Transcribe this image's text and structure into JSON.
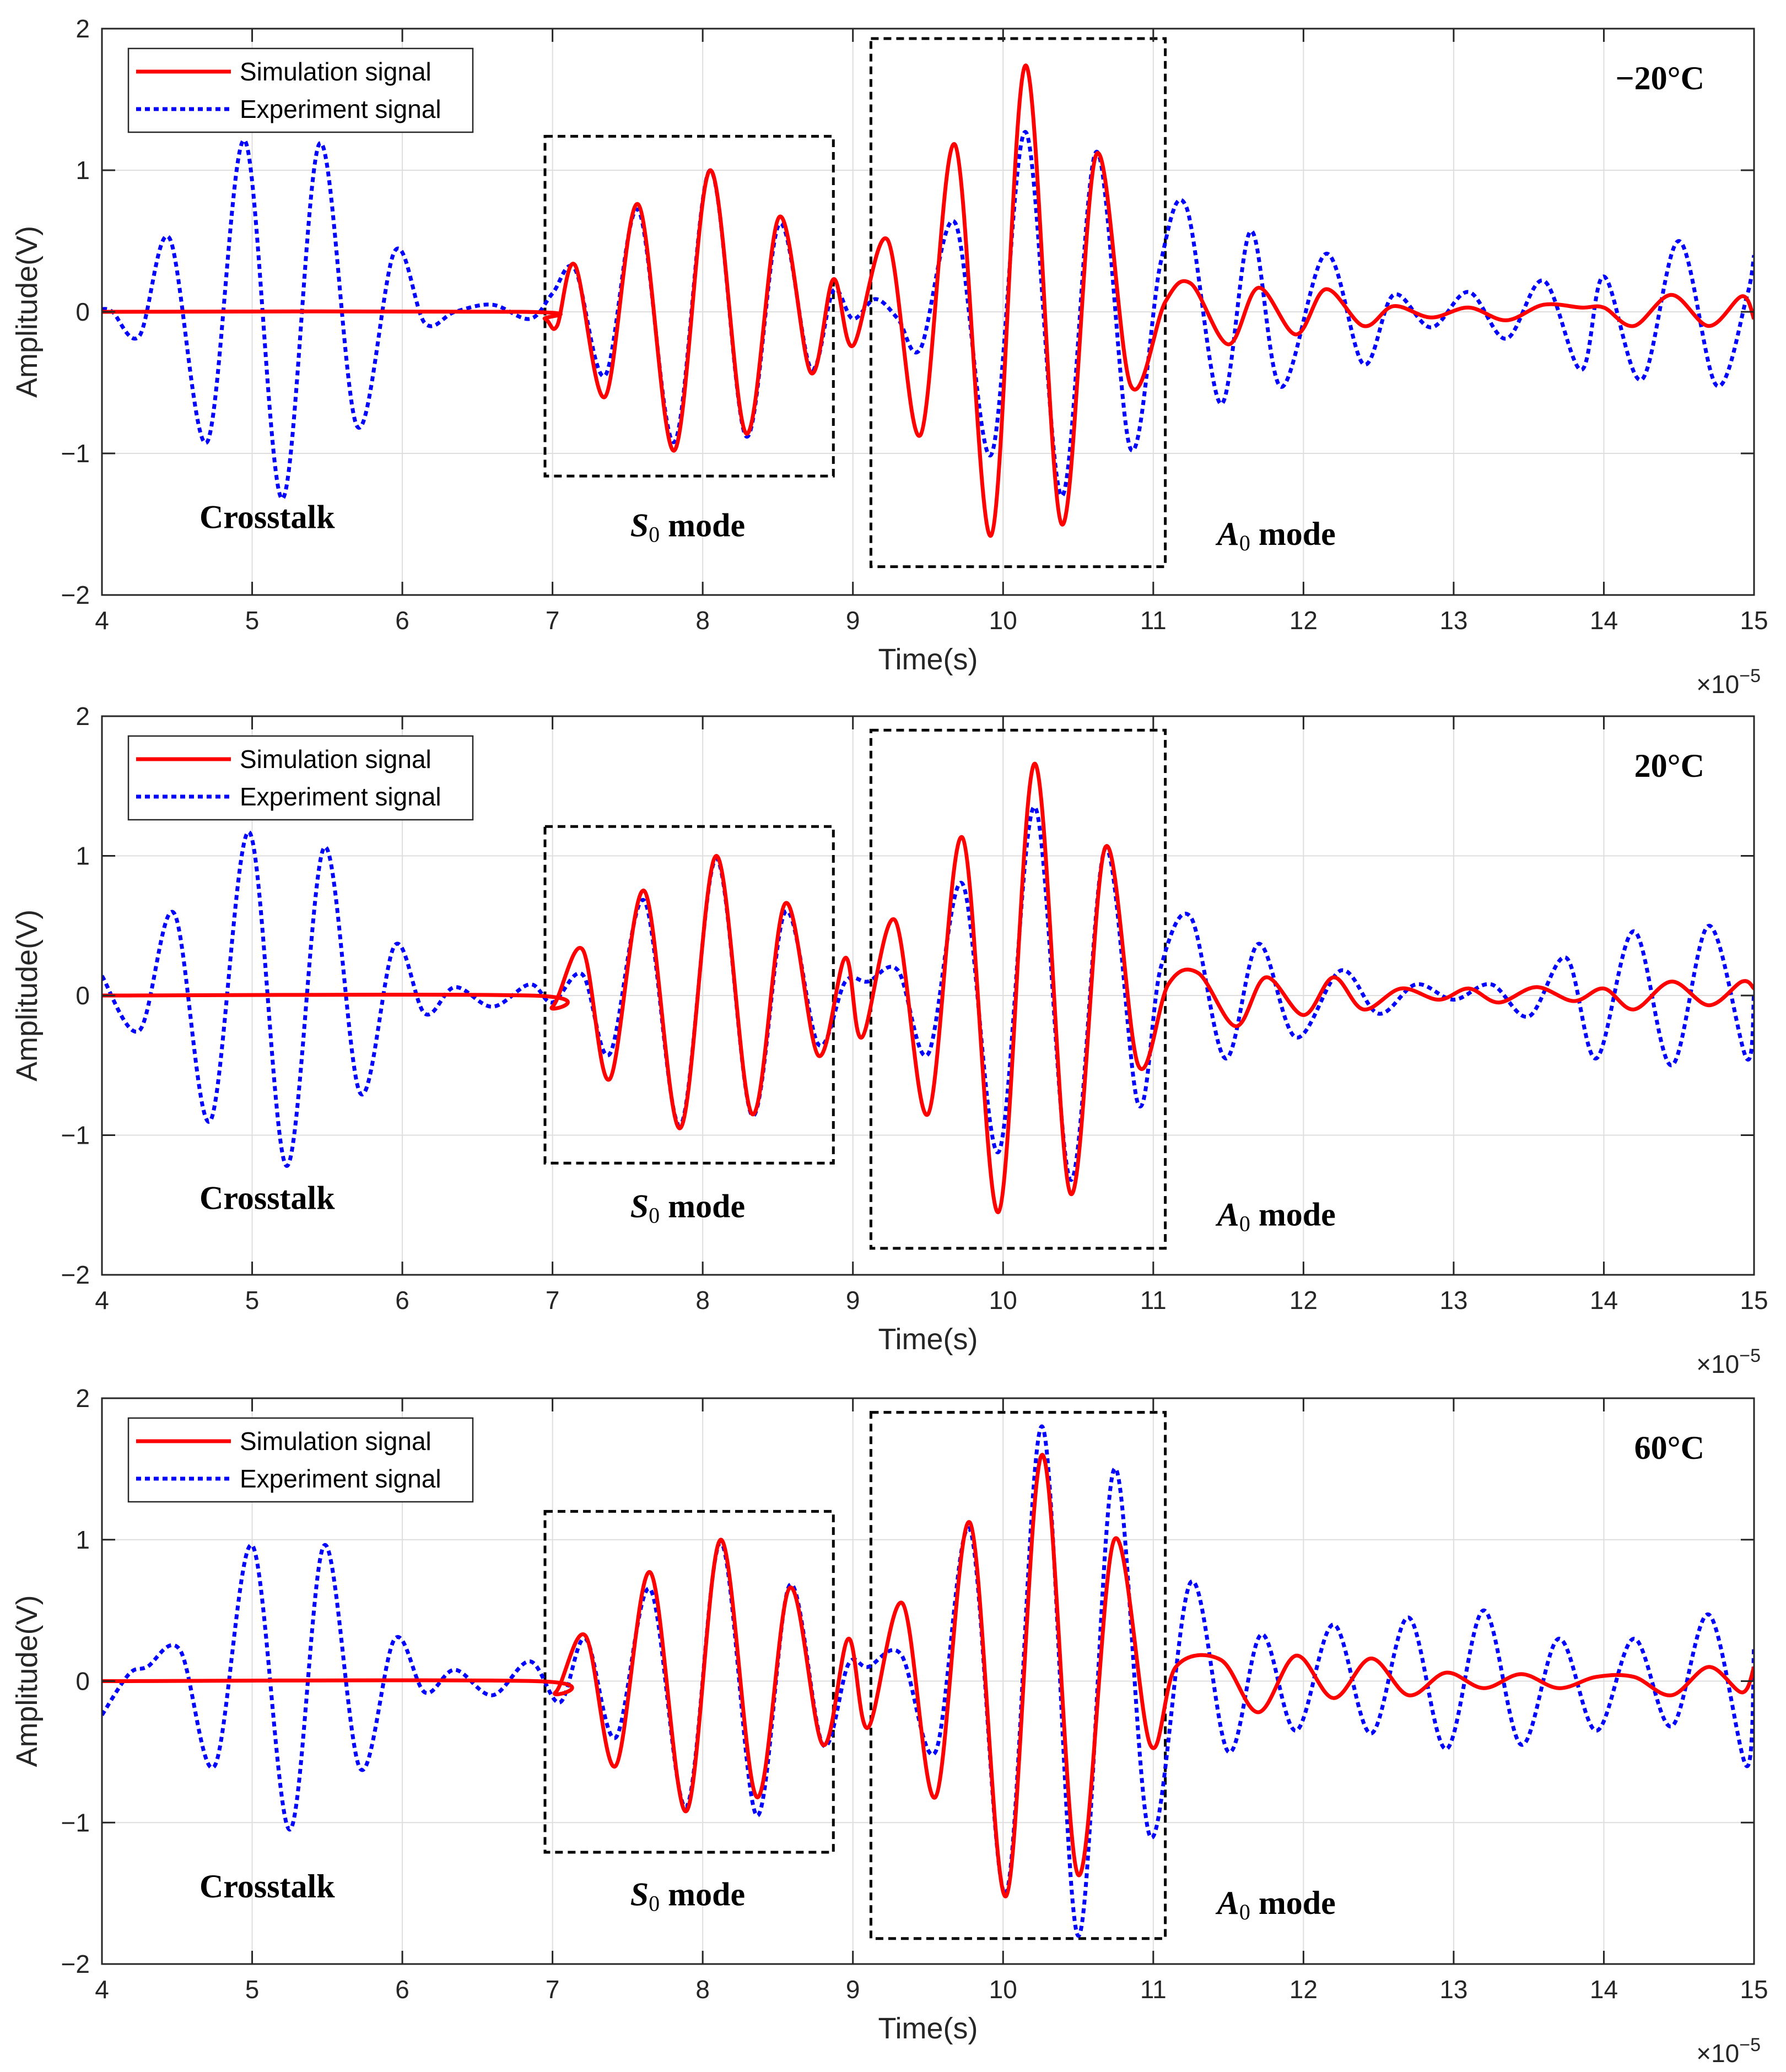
{
  "colors": {
    "simulation": "#ff0000",
    "experiment": "#0000ff",
    "axis": "#262626",
    "grid": "#dedede"
  },
  "chart_data": [
    {
      "type": "line",
      "title": "",
      "xlabel": "Time(s)",
      "ylabel": "Amplitude(V)",
      "x_exponent_label": "×10",
      "x_exponent_power": "−5",
      "xlim": [
        4,
        15
      ],
      "ylim": [
        -2,
        2
      ],
      "xticks": [
        "4",
        "5",
        "6",
        "7",
        "8",
        "9",
        "10",
        "11",
        "12",
        "13",
        "14",
        "15"
      ],
      "yticks": [
        "−2",
        "−1",
        "0",
        "1",
        "2"
      ],
      "legend": [
        "Simulation signal",
        "Experiment signal"
      ],
      "temperature": "−20°C",
      "annotations": {
        "crosstalk": "Crosstalk",
        "s0": "S",
        "s0_sub": "0",
        "a0": "A",
        "a0_sub": "0",
        "mode": " mode"
      },
      "s0_box": {
        "x": [
          6.95,
          8.87
        ],
        "y": [
          -1.16,
          1.24
        ]
      },
      "a0_box": {
        "x": [
          9.12,
          11.08
        ],
        "y": [
          -1.8,
          1.93
        ]
      },
      "series": [
        {
          "name": "Simulation signal",
          "x": [
            4.0,
            6.8,
            6.95,
            7.03,
            7.15,
            7.35,
            7.57,
            7.81,
            8.05,
            8.29,
            8.51,
            8.72,
            8.87,
            9.0,
            9.23,
            9.45,
            9.68,
            9.92,
            10.15,
            10.39,
            10.62,
            10.85,
            11.08,
            11.25,
            11.5,
            11.7,
            11.95,
            12.15,
            12.4,
            12.6,
            12.85,
            13.1,
            13.35,
            13.6,
            13.85,
            14.0,
            14.2,
            14.45,
            14.7,
            14.92,
            15.0
          ],
          "y": [
            0.0,
            0.0,
            -0.05,
            -0.1,
            0.33,
            -0.6,
            0.76,
            -0.98,
            1.0,
            -0.86,
            0.67,
            -0.43,
            0.23,
            -0.24,
            0.51,
            -0.87,
            1.18,
            -1.58,
            1.74,
            -1.5,
            1.11,
            -0.52,
            0.07,
            0.2,
            -0.23,
            0.17,
            -0.16,
            0.16,
            -0.1,
            0.04,
            -0.04,
            0.03,
            -0.06,
            0.05,
            0.03,
            0.03,
            -0.1,
            0.12,
            -0.1,
            0.11,
            -0.05
          ]
        },
        {
          "name": "Experiment signal",
          "x": [
            4.0,
            4.07,
            4.25,
            4.45,
            4.7,
            4.95,
            5.2,
            5.45,
            5.7,
            5.95,
            6.15,
            6.35,
            6.6,
            6.85,
            7.0,
            7.15,
            7.35,
            7.57,
            7.81,
            8.05,
            8.29,
            8.51,
            8.72,
            8.87,
            9.0,
            9.15,
            9.3,
            9.45,
            9.68,
            9.92,
            10.15,
            10.39,
            10.62,
            10.85,
            11.05,
            11.22,
            11.45,
            11.65,
            11.85,
            12.15,
            12.4,
            12.6,
            12.85,
            13.1,
            13.35,
            13.6,
            13.85,
            14.0,
            14.25,
            14.5,
            14.75,
            14.95,
            15.0
          ],
          "y": [
            0.02,
            0.0,
            -0.17,
            0.52,
            -0.92,
            1.21,
            -1.32,
            1.19,
            -0.81,
            0.43,
            -0.08,
            0.0,
            0.05,
            -0.05,
            0.13,
            0.3,
            -0.45,
            0.72,
            -0.92,
            1.0,
            -0.88,
            0.62,
            -0.4,
            0.15,
            -0.05,
            0.09,
            -0.05,
            -0.26,
            0.63,
            -1.01,
            1.27,
            -1.3,
            1.13,
            -0.97,
            0.35,
            0.74,
            -0.65,
            0.57,
            -0.53,
            0.41,
            -0.37,
            0.12,
            -0.11,
            0.14,
            -0.19,
            0.22,
            -0.41,
            0.25,
            -0.48,
            0.5,
            -0.52,
            0.1,
            0.4
          ]
        }
      ]
    },
    {
      "type": "line",
      "title": "",
      "xlabel": "Time(s)",
      "ylabel": "Amplitude(V)",
      "x_exponent_label": "×10",
      "x_exponent_power": "−5",
      "xlim": [
        4,
        15
      ],
      "ylim": [
        -2,
        2
      ],
      "xticks": [
        "4",
        "5",
        "6",
        "7",
        "8",
        "9",
        "10",
        "11",
        "12",
        "13",
        "14",
        "15"
      ],
      "yticks": [
        "−2",
        "−1",
        "0",
        "1",
        "2"
      ],
      "legend": [
        "Simulation signal",
        "Experiment signal"
      ],
      "temperature": "20°C",
      "annotations": {
        "crosstalk": "Crosstalk",
        "s0": "S",
        "s0_sub": "0",
        "a0": "A",
        "a0_sub": "0",
        "mode": " mode"
      },
      "s0_box": {
        "x": [
          6.95,
          8.87
        ],
        "y": [
          -1.2,
          1.21
        ]
      },
      "a0_box": {
        "x": [
          9.12,
          11.08
        ],
        "y": [
          -1.81,
          1.9
        ]
      },
      "series": [
        {
          "name": "Simulation signal",
          "x": [
            4.0,
            6.85,
            7.0,
            7.2,
            7.38,
            7.61,
            7.85,
            8.09,
            8.33,
            8.55,
            8.77,
            8.95,
            9.06,
            9.28,
            9.5,
            9.73,
            9.97,
            10.21,
            10.45,
            10.68,
            10.9,
            11.1,
            11.3,
            11.55,
            11.75,
            12.0,
            12.2,
            12.4,
            12.65,
            12.9,
            13.1,
            13.3,
            13.55,
            13.8,
            14.0,
            14.2,
            14.45,
            14.7,
            14.92,
            15.0
          ],
          "y": [
            0.0,
            0.0,
            -0.08,
            0.33,
            -0.6,
            0.75,
            -0.95,
            1.0,
            -0.85,
            0.66,
            -0.43,
            0.27,
            -0.3,
            0.54,
            -0.85,
            1.13,
            -1.55,
            1.66,
            -1.42,
            1.06,
            -0.5,
            0.08,
            0.16,
            -0.22,
            0.13,
            -0.14,
            0.13,
            -0.1,
            0.05,
            -0.03,
            0.05,
            -0.05,
            0.06,
            -0.04,
            0.05,
            -0.1,
            0.1,
            -0.07,
            0.1,
            0.05
          ]
        },
        {
          "name": "Experiment signal",
          "x": [
            4.0,
            4.25,
            4.48,
            4.72,
            4.98,
            5.23,
            5.48,
            5.72,
            5.95,
            6.15,
            6.35,
            6.6,
            6.85,
            7.0,
            7.2,
            7.38,
            7.61,
            7.85,
            8.09,
            8.33,
            8.55,
            8.77,
            8.95,
            9.1,
            9.3,
            9.5,
            9.73,
            9.97,
            10.21,
            10.45,
            10.68,
            10.9,
            11.05,
            11.25,
            11.48,
            11.7,
            11.95,
            12.25,
            12.5,
            12.75,
            13.0,
            13.25,
            13.5,
            13.75,
            13.95,
            14.2,
            14.45,
            14.7,
            14.95,
            15.0
          ],
          "y": [
            0.14,
            -0.25,
            0.59,
            -0.9,
            1.17,
            -1.22,
            1.06,
            -0.7,
            0.36,
            -0.13,
            0.06,
            -0.08,
            0.08,
            -0.05,
            0.15,
            -0.42,
            0.68,
            -0.93,
            0.98,
            -0.86,
            0.6,
            -0.35,
            0.1,
            0.1,
            0.18,
            -0.42,
            0.8,
            -1.12,
            1.35,
            -1.32,
            1.05,
            -0.78,
            0.2,
            0.56,
            -0.45,
            0.37,
            -0.3,
            0.18,
            -0.13,
            0.08,
            -0.03,
            0.08,
            -0.15,
            0.27,
            -0.45,
            0.46,
            -0.5,
            0.5,
            -0.45,
            0.02
          ]
        }
      ]
    },
    {
      "type": "line",
      "title": "",
      "xlabel": "Time(s)",
      "ylabel": "Amplitude(V)",
      "x_exponent_label": "×10",
      "x_exponent_power": "−5",
      "xlim": [
        4,
        15
      ],
      "ylim": [
        -2,
        2
      ],
      "xticks": [
        "4",
        "5",
        "6",
        "7",
        "8",
        "9",
        "10",
        "11",
        "12",
        "13",
        "14",
        "15"
      ],
      "yticks": [
        "−2",
        "−1",
        "0",
        "1",
        "2"
      ],
      "legend": [
        "Simulation signal",
        "Experiment signal"
      ],
      "temperature": "60°C",
      "annotations": {
        "crosstalk": "Crosstalk",
        "s0": "S",
        "s0_sub": "0",
        "a0": "A",
        "a0_sub": "0",
        "mode": " mode"
      },
      "s0_box": {
        "x": [
          6.95,
          8.87
        ],
        "y": [
          -1.21,
          1.2
        ]
      },
      "a0_box": {
        "x": [
          9.12,
          11.08
        ],
        "y": [
          -1.82,
          1.9
        ]
      },
      "series": [
        {
          "name": "Simulation signal",
          "x": [
            4.0,
            6.88,
            7.02,
            7.22,
            7.42,
            7.65,
            7.89,
            8.12,
            8.36,
            8.58,
            8.8,
            8.97,
            9.1,
            9.33,
            9.55,
            9.78,
            10.02,
            10.26,
            10.5,
            10.74,
            10.98,
            11.15,
            11.45,
            11.7,
            11.95,
            12.2,
            12.45,
            12.7,
            12.95,
            13.2,
            13.45,
            13.7,
            13.95,
            14.2,
            14.45,
            14.7,
            14.92,
            15.0
          ],
          "y": [
            0.0,
            0.0,
            -0.08,
            0.32,
            -0.6,
            0.77,
            -0.92,
            1.0,
            -0.82,
            0.66,
            -0.45,
            0.3,
            -0.33,
            0.55,
            -0.82,
            1.12,
            -1.52,
            1.6,
            -1.37,
            1.0,
            -0.45,
            0.1,
            0.15,
            -0.22,
            0.18,
            -0.12,
            0.16,
            -0.1,
            0.06,
            -0.05,
            0.05,
            -0.05,
            0.03,
            0.03,
            -0.1,
            0.1,
            -0.08,
            0.1
          ]
        },
        {
          "name": "Experiment signal",
          "x": [
            4.0,
            4.18,
            4.3,
            4.52,
            4.75,
            5.0,
            5.25,
            5.48,
            5.72,
            5.95,
            6.15,
            6.35,
            6.6,
            6.85,
            7.05,
            7.22,
            7.42,
            7.65,
            7.89,
            8.12,
            8.36,
            8.58,
            8.8,
            8.97,
            9.1,
            9.32,
            9.55,
            9.78,
            10.02,
            10.26,
            10.5,
            10.74,
            10.98,
            11.25,
            11.5,
            11.72,
            11.95,
            12.2,
            12.45,
            12.7,
            12.95,
            13.2,
            13.45,
            13.7,
            13.95,
            14.2,
            14.45,
            14.7,
            14.95,
            15.0
          ],
          "y": [
            -0.24,
            0.05,
            0.1,
            0.22,
            -0.6,
            0.96,
            -1.05,
            0.96,
            -0.62,
            0.3,
            -0.08,
            0.08,
            -0.1,
            0.14,
            -0.15,
            0.3,
            -0.4,
            0.65,
            -0.89,
            0.98,
            -0.95,
            0.68,
            -0.45,
            0.12,
            0.1,
            0.19,
            -0.5,
            1.07,
            -1.5,
            1.8,
            -1.8,
            1.5,
            -1.1,
            0.7,
            -0.5,
            0.33,
            -0.35,
            0.4,
            -0.37,
            0.45,
            -0.48,
            0.5,
            -0.45,
            0.3,
            -0.35,
            0.3,
            -0.32,
            0.47,
            -0.6,
            0.25
          ]
        }
      ]
    }
  ]
}
